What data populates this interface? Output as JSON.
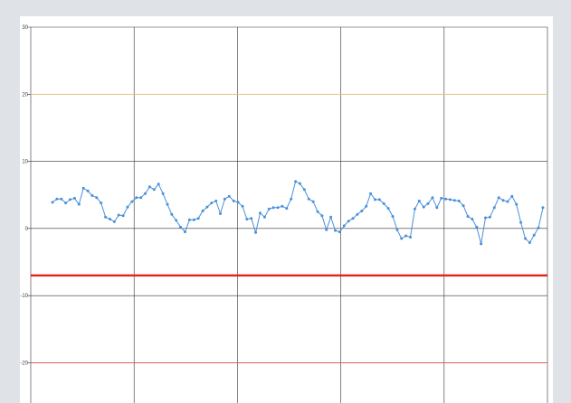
{
  "chart_data": {
    "type": "line",
    "title": "",
    "xlabel": "",
    "ylabel": "",
    "ylim": [
      -26,
      30
    ],
    "y_ticks": [
      30,
      20,
      10,
      0,
      -10,
      -20
    ],
    "y_tick_labels": [
      "30",
      "20",
      "10",
      "0",
      "-10",
      "-20"
    ],
    "grid": true,
    "x_gridlines": 5,
    "reference_lines": [
      {
        "value": 20,
        "color": "#f5c97a",
        "style": "thin"
      },
      {
        "value": -7,
        "color": "#e8201f",
        "style": "thick"
      },
      {
        "value": -20,
        "color": "#e05a5a",
        "style": "thin"
      }
    ],
    "series": [
      {
        "color": "#4a90d9",
        "values": [
          3.9,
          4.4,
          4.4,
          3.8,
          4.3,
          4.5,
          3.6,
          6.0,
          5.6,
          4.9,
          4.6,
          3.8,
          1.7,
          1.4,
          1.0,
          2.0,
          1.9,
          3.2,
          4.0,
          4.6,
          4.6,
          5.2,
          6.2,
          5.8,
          6.6,
          5.2,
          3.6,
          2.1,
          1.2,
          0.2,
          -0.5,
          1.3,
          1.3,
          1.5,
          2.6,
          3.2,
          3.8,
          4.1,
          2.2,
          4.4,
          4.8,
          4.1,
          3.9,
          3.3,
          1.4,
          1.5,
          -0.6,
          2.3,
          1.7,
          2.9,
          3.1,
          3.1,
          3.3,
          3.0,
          4.4,
          7.0,
          6.7,
          5.8,
          4.4,
          4.0,
          2.5,
          1.9,
          -0.2,
          1.7,
          -0.3,
          -0.5,
          0.4,
          1.1,
          1.5,
          2.1,
          2.6,
          3.3,
          5.2,
          4.3,
          4.3,
          3.7,
          3.0,
          1.8,
          -0.2,
          -1.5,
          -1.1,
          -1.3,
          2.9,
          4.1,
          3.2,
          3.7,
          4.6,
          3.1,
          4.5,
          4.4,
          4.3,
          4.2,
          4.1,
          3.4,
          1.8,
          1.4,
          0.2,
          -2.3,
          1.6,
          1.7,
          3.1,
          4.6,
          4.2,
          4.0,
          4.8,
          3.6,
          0.9,
          -1.5,
          -2.1,
          -1.0,
          0.1,
          3.1
        ]
      }
    ]
  }
}
